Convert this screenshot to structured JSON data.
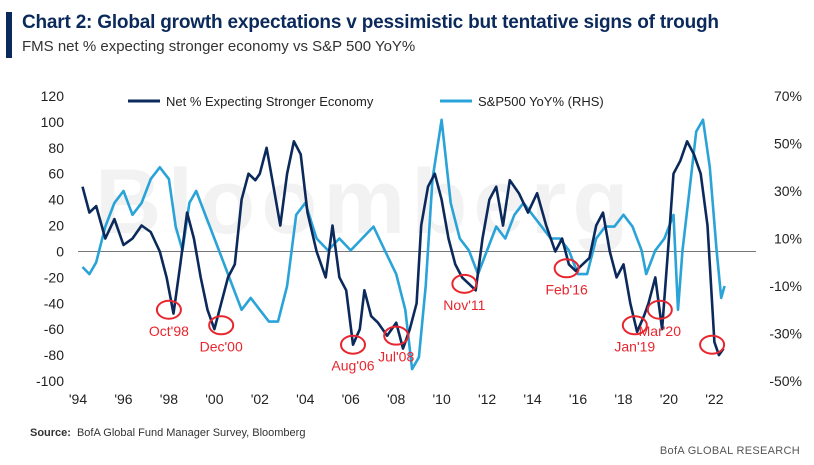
{
  "header": {
    "title": "Chart 2: Global growth expectations v pessimistic but tentative signs of trough",
    "subtitle": "FMS net % expecting stronger economy vs S&P 500 YoY%"
  },
  "footer": {
    "source_label": "Source:",
    "source_text": "BofA Global Fund Manager Survey, Bloomberg",
    "brand": "BofA GLOBAL RESEARCH"
  },
  "watermark": "Bloomberg",
  "colors": {
    "series_net": "#0b2a5b",
    "series_sp500": "#29a3d8",
    "annotation": "#e8262e",
    "zero_line": "#777777"
  },
  "chart_data": {
    "type": "line",
    "xlim": [
      1994,
      2022.6
    ],
    "x_ticks": [
      "'94",
      "'96",
      "'98",
      "'00",
      "'02",
      "'04",
      "'06",
      "'08",
      "'10",
      "'12",
      "'14",
      "'16",
      "'18",
      "'20",
      "'22"
    ],
    "x_tick_values": [
      1994,
      1996,
      1998,
      2000,
      2002,
      2004,
      2006,
      2008,
      2010,
      2012,
      2014,
      2016,
      2018,
      2020,
      2022
    ],
    "ylim_left": [
      -100,
      120
    ],
    "y_ticks_left": [
      120,
      100,
      80,
      60,
      40,
      20,
      0,
      -20,
      -40,
      -60,
      -80,
      -100
    ],
    "ylim_right": [
      -50,
      70
    ],
    "y_ticks_right": [
      "70%",
      "50%",
      "30%",
      "10%",
      "-10%",
      "-30%",
      "-50%"
    ],
    "y_tick_values_right": [
      70,
      50,
      30,
      10,
      -10,
      -30,
      -50
    ],
    "legend": [
      "Net % Expecting Stronger Economy",
      "S&P500 YoY% (RHS)"
    ],
    "series": [
      {
        "name": "Net % Expecting Stronger Economy",
        "axis": "left",
        "x": [
          1994.2,
          1994.5,
          1994.8,
          1995.2,
          1995.6,
          1996.0,
          1996.4,
          1996.8,
          1997.2,
          1997.6,
          1997.9,
          1998.2,
          1998.5,
          1998.8,
          1999.1,
          1999.4,
          1999.7,
          2000.0,
          2000.3,
          2000.6,
          2000.9,
          2001.2,
          2001.5,
          2001.8,
          2002.0,
          2002.3,
          2002.6,
          2002.9,
          2003.2,
          2003.5,
          2003.8,
          2004.1,
          2004.5,
          2004.9,
          2005.2,
          2005.5,
          2005.8,
          2006.1,
          2006.4,
          2006.6,
          2006.9,
          2007.2,
          2007.6,
          2008.0,
          2008.3,
          2008.6,
          2008.9,
          2009.1,
          2009.4,
          2009.7,
          2010.0,
          2010.3,
          2010.6,
          2010.9,
          2011.2,
          2011.5,
          2011.8,
          2012.1,
          2012.4,
          2012.7,
          2013.0,
          2013.4,
          2013.8,
          2014.2,
          2014.6,
          2015.0,
          2015.3,
          2015.6,
          2015.9,
          2016.2,
          2016.5,
          2016.8,
          2017.1,
          2017.4,
          2017.7,
          2018.0,
          2018.3,
          2018.6,
          2018.9,
          2019.1,
          2019.4,
          2019.7,
          2020.0,
          2020.2,
          2020.5,
          2020.8,
          2021.1,
          2021.4,
          2021.7,
          2022.0,
          2022.2,
          2022.4
        ],
        "values": [
          50,
          30,
          35,
          10,
          25,
          5,
          10,
          20,
          15,
          0,
          -20,
          -48,
          -10,
          30,
          10,
          -20,
          -45,
          -60,
          -40,
          -20,
          -10,
          40,
          60,
          55,
          60,
          80,
          50,
          20,
          60,
          85,
          75,
          30,
          0,
          -20,
          20,
          -20,
          -30,
          -72,
          -60,
          -30,
          -50,
          -55,
          -65,
          -55,
          -75,
          -60,
          -40,
          20,
          50,
          60,
          40,
          10,
          -10,
          -20,
          -25,
          -30,
          10,
          40,
          50,
          20,
          55,
          45,
          30,
          45,
          20,
          0,
          10,
          -10,
          -15,
          -10,
          -5,
          20,
          30,
          0,
          -20,
          -10,
          -40,
          -62,
          -50,
          -40,
          -20,
          -60,
          10,
          60,
          70,
          85,
          75,
          60,
          20,
          -70,
          -80,
          -75
        ]
      },
      {
        "name": "S&P500 YoY% (RHS)",
        "axis": "right",
        "x": [
          1994.2,
          1994.5,
          1994.8,
          1995.2,
          1995.6,
          1996.0,
          1996.4,
          1996.8,
          1997.2,
          1997.6,
          1998.0,
          1998.3,
          1998.6,
          1998.9,
          1999.2,
          1999.6,
          2000.0,
          2000.4,
          2000.8,
          2001.2,
          2001.6,
          2002.0,
          2002.4,
          2002.8,
          2003.2,
          2003.6,
          2004.0,
          2004.5,
          2005.0,
          2005.5,
          2006.0,
          2006.5,
          2007.0,
          2007.5,
          2008.0,
          2008.4,
          2008.7,
          2009.0,
          2009.3,
          2009.6,
          2010.0,
          2010.4,
          2010.8,
          2011.2,
          2011.6,
          2012.0,
          2012.4,
          2012.8,
          2013.2,
          2013.6,
          2014.0,
          2014.4,
          2014.8,
          2015.2,
          2015.6,
          2016.0,
          2016.4,
          2016.8,
          2017.2,
          2017.6,
          2018.0,
          2018.4,
          2018.8,
          2019.0,
          2019.4,
          2019.8,
          2020.2,
          2020.4,
          2020.6,
          2020.9,
          2021.2,
          2021.5,
          2021.8,
          2022.1,
          2022.3,
          2022.45
        ],
        "values": [
          -2,
          -5,
          0,
          15,
          25,
          30,
          20,
          25,
          35,
          40,
          35,
          15,
          5,
          25,
          30,
          20,
          10,
          0,
          -10,
          -20,
          -15,
          -20,
          -25,
          -25,
          -10,
          20,
          25,
          10,
          5,
          10,
          5,
          10,
          15,
          5,
          -5,
          -20,
          -45,
          -40,
          -10,
          35,
          60,
          25,
          10,
          5,
          -5,
          5,
          15,
          10,
          20,
          25,
          20,
          15,
          10,
          10,
          5,
          -5,
          -5,
          10,
          15,
          15,
          20,
          15,
          5,
          -5,
          5,
          10,
          20,
          -20,
          5,
          30,
          55,
          60,
          40,
          5,
          -15,
          -10
        ]
      }
    ],
    "annotations": [
      {
        "label": "Oct'98",
        "x": 1998.0,
        "y": -45
      },
      {
        "label": "Dec'00",
        "x": 2000.3,
        "y": -57
      },
      {
        "label": "Aug'06",
        "x": 2006.1,
        "y": -72
      },
      {
        "label": "Jul'08",
        "x": 2008.0,
        "y": -65
      },
      {
        "label": "Nov'11",
        "x": 2011.0,
        "y": -25
      },
      {
        "label": "Feb'16",
        "x": 2015.5,
        "y": -13
      },
      {
        "label": "Jan'19",
        "x": 2018.5,
        "y": -57
      },
      {
        "label": "Mar'20",
        "x": 2019.6,
        "y": -45
      },
      {
        "label": "",
        "x": 2021.9,
        "y": -72
      }
    ]
  }
}
